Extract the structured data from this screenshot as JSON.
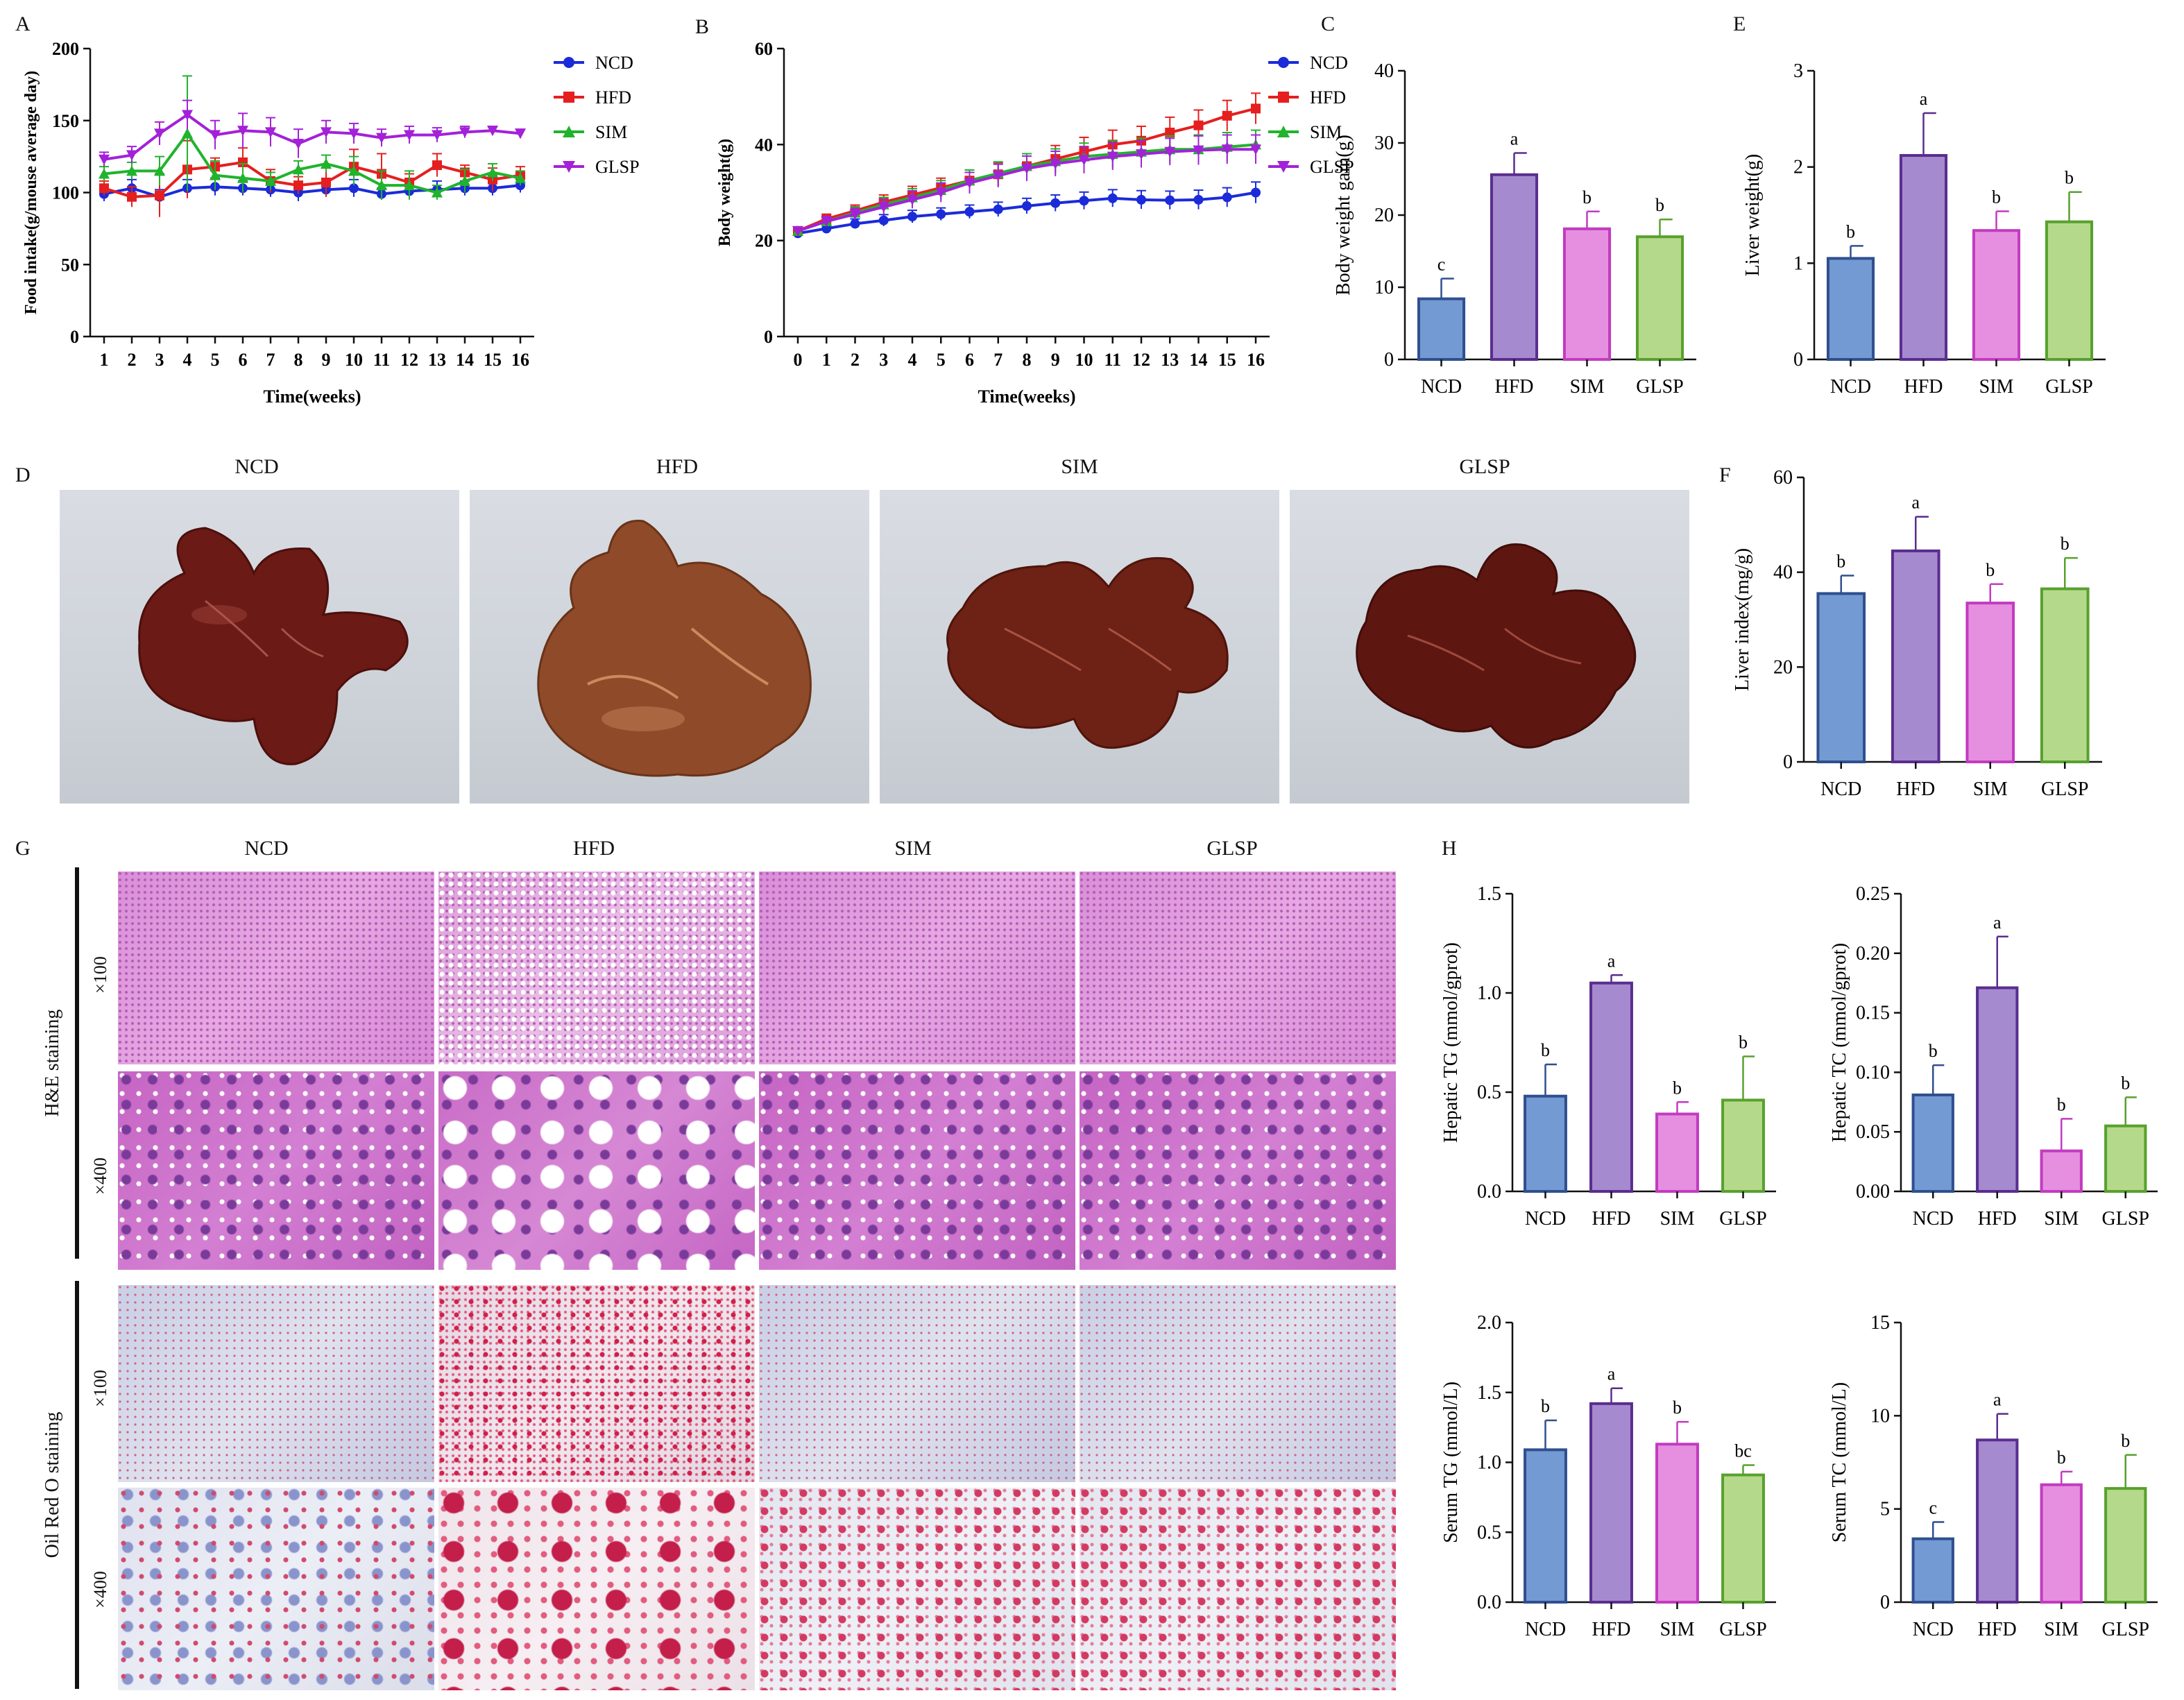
{
  "panel_letters": {
    "A": "A",
    "B": "B",
    "C": "C",
    "D": "D",
    "E": "E",
    "F": "F",
    "G": "G",
    "H": "H"
  },
  "groups": [
    "NCD",
    "HFD",
    "SIM",
    "GLSP"
  ],
  "colors": {
    "NCD": "#1b2bd9",
    "HFD": "#e51f1f",
    "SIM": "#20b32c",
    "GLSP": "#a321d8",
    "bar_NCD": "#739ad2",
    "bar_HFD": "#a58ad0",
    "bar_SIM": "#e68fe0",
    "bar_GLSP": "#b5d98a",
    "edge_NCD": "#2f4f8f",
    "edge_HFD": "#5a2d8e",
    "edge_SIM": "#c23bc0",
    "edge_GLSP": "#57a12e"
  },
  "photo_labels": {
    "liver": [
      "NCD",
      "HFD",
      "SIM",
      "GLSP"
    ],
    "histology": [
      "NCD",
      "HFD",
      "SIM",
      "GLSP"
    ]
  },
  "histology": {
    "he_label": "H&E staining",
    "or_label": "Oil Red O staining",
    "mag100": "×100",
    "mag400": "×400"
  },
  "chart_data": [
    {
      "id": "A",
      "type": "line",
      "ylabel": "Food intake(g/mouse average day)",
      "xlabel": "Time(weeks)",
      "ylim": [
        0,
        200
      ],
      "yticks": [
        0,
        50,
        100,
        150,
        200
      ],
      "x": [
        1,
        2,
        3,
        4,
        5,
        6,
        7,
        8,
        9,
        10,
        11,
        12,
        13,
        14,
        15,
        16
      ],
      "xtick_labels": [
        "1",
        "2",
        "3",
        "4",
        "5",
        "6",
        "7",
        "8",
        "9",
        "10",
        "11",
        "12",
        "13",
        "14",
        "15",
        "16"
      ],
      "series": [
        {
          "name": "NCD",
          "values": [
            99,
            103,
            97,
            103,
            104,
            103,
            102,
            100,
            102,
            103,
            99,
            101,
            102,
            103,
            103,
            105
          ],
          "err": [
            5,
            6,
            5,
            6,
            6,
            5,
            5,
            6,
            5,
            6,
            4,
            5,
            6,
            5,
            5,
            5
          ]
        },
        {
          "name": "HFD",
          "values": [
            103,
            97,
            98,
            116,
            118,
            121,
            108,
            105,
            107,
            118,
            113,
            107,
            119,
            114,
            109,
            112
          ],
          "err": [
            5,
            7,
            15,
            20,
            6,
            10,
            8,
            6,
            10,
            12,
            14,
            6,
            8,
            5,
            8,
            6
          ]
        },
        {
          "name": "SIM",
          "values": [
            113,
            115,
            115,
            141,
            112,
            110,
            108,
            116,
            120,
            115,
            105,
            105,
            100,
            108,
            114,
            110
          ],
          "err": [
            5,
            6,
            10,
            40,
            10,
            10,
            6,
            6,
            6,
            10,
            10,
            10,
            5,
            8,
            6,
            5
          ]
        },
        {
          "name": "GLSP",
          "values": [
            123,
            126,
            141,
            154,
            140,
            143,
            142,
            134,
            142,
            141,
            138,
            140,
            140,
            142,
            143,
            141
          ],
          "err": [
            5,
            6,
            8,
            10,
            10,
            12,
            10,
            10,
            8,
            7,
            6,
            6,
            5,
            4,
            3,
            3
          ]
        }
      ]
    },
    {
      "id": "B",
      "type": "line",
      "ylabel": "Body weight(g)",
      "xlabel": "Time(weeks)",
      "ylim": [
        0,
        60
      ],
      "yticks": [
        0,
        20,
        40,
        60
      ],
      "x": [
        0,
        1,
        2,
        3,
        4,
        5,
        6,
        7,
        8,
        9,
        10,
        11,
        12,
        13,
        14,
        15,
        16
      ],
      "xtick_labels": [
        "0",
        "1",
        "2",
        "3",
        "4",
        "5",
        "6",
        "7",
        "8",
        "9",
        "10",
        "11",
        "12",
        "13",
        "14",
        "15",
        "16"
      ],
      "series": [
        {
          "name": "NCD",
          "values": [
            21.5,
            22.5,
            23.5,
            24.2,
            25,
            25.5,
            26,
            26.5,
            27.2,
            27.8,
            28.3,
            28.8,
            28.5,
            28.4,
            28.5,
            29,
            30
          ],
          "err": [
            0.6,
            0.8,
            1,
            1.2,
            1.3,
            1.3,
            1.4,
            1.5,
            1.6,
            1.7,
            1.8,
            1.8,
            1.9,
            1.9,
            2,
            2,
            2.2
          ]
        },
        {
          "name": "HFD",
          "values": [
            22,
            24.5,
            26.2,
            28,
            29.5,
            31,
            32.5,
            33.8,
            35.5,
            37,
            38.5,
            40,
            40.8,
            42.5,
            44,
            46,
            47.5
          ],
          "err": [
            0.6,
            1,
            1.2,
            1.5,
            1.8,
            2,
            2.2,
            2.4,
            2.6,
            2.8,
            3,
            3,
            3,
            3.2,
            3.2,
            3.2,
            3.2
          ]
        },
        {
          "name": "SIM",
          "values": [
            22,
            24,
            25.8,
            27.5,
            29,
            30.5,
            32.5,
            34,
            35.5,
            36.5,
            37.5,
            38,
            38.5,
            39,
            39,
            39.5,
            40
          ],
          "err": [
            0.6,
            1,
            1.2,
            1.5,
            1.8,
            2,
            2.2,
            2.4,
            2.6,
            2.6,
            2.8,
            2.8,
            2.8,
            2.8,
            3,
            3,
            3
          ]
        },
        {
          "name": "GLSP",
          "values": [
            22,
            24,
            25.5,
            27,
            28.5,
            30,
            32,
            33.5,
            35,
            36,
            36.8,
            37.5,
            38,
            38.5,
            38.8,
            39,
            39
          ],
          "err": [
            0.6,
            1,
            1.2,
            1.5,
            1.8,
            2,
            2.2,
            2.4,
            2.6,
            2.6,
            2.8,
            2.8,
            2.8,
            2.8,
            3,
            3,
            3
          ]
        }
      ]
    },
    {
      "id": "C",
      "type": "bar",
      "ylabel": "Body weight gain(g)",
      "categories": [
        "NCD",
        "HFD",
        "SIM",
        "GLSP"
      ],
      "values": [
        8.4,
        25.6,
        18.1,
        17.0
      ],
      "err": [
        2.8,
        3.0,
        2.4,
        2.4
      ],
      "letters": [
        "c",
        "a",
        "b",
        "b"
      ],
      "ylim": [
        0,
        40
      ],
      "yticks": [
        0,
        10,
        20,
        30,
        40
      ],
      "ytick_labels": [
        "0",
        "10",
        "20",
        "30",
        "40"
      ]
    },
    {
      "id": "E",
      "type": "bar",
      "ylabel": "Liver weight(g)",
      "categories": [
        "NCD",
        "HFD",
        "SIM",
        "GLSP"
      ],
      "values": [
        1.05,
        2.12,
        1.34,
        1.43
      ],
      "err": [
        0.13,
        0.44,
        0.2,
        0.31
      ],
      "letters": [
        "b",
        "a",
        "b",
        "b"
      ],
      "ylim": [
        0,
        3
      ],
      "yticks": [
        0,
        1,
        2,
        3
      ],
      "ytick_labels": [
        "0",
        "1",
        "2",
        "3"
      ]
    },
    {
      "id": "F",
      "type": "bar",
      "ylabel": "Liver index(mg/g)",
      "categories": [
        "NCD",
        "HFD",
        "SIM",
        "GLSP"
      ],
      "values": [
        35.5,
        44.5,
        33.5,
        36.5
      ],
      "err": [
        3.8,
        7.2,
        4.0,
        6.5
      ],
      "letters": [
        "b",
        "a",
        "b",
        "b"
      ],
      "ylim": [
        0,
        60
      ],
      "yticks": [
        0,
        20,
        40,
        60
      ],
      "ytick_labels": [
        "0",
        "20",
        "40",
        "60"
      ]
    },
    {
      "id": "H1",
      "type": "bar",
      "ylabel": "Hepatic TG (mmol/gprot)",
      "categories": [
        "NCD",
        "HFD",
        "SIM",
        "GLSP"
      ],
      "values": [
        0.48,
        1.05,
        0.39,
        0.46
      ],
      "err": [
        0.16,
        0.04,
        0.06,
        0.22
      ],
      "letters": [
        "b",
        "a",
        "b",
        "b"
      ],
      "ylim": [
        0,
        1.5
      ],
      "yticks": [
        0,
        0.5,
        1.0,
        1.5
      ],
      "ytick_labels": [
        "0.0",
        "0.5",
        "1.0",
        "1.5"
      ]
    },
    {
      "id": "H2",
      "type": "bar",
      "ylabel": "Hepatic TC (mmol/gprot)",
      "categories": [
        "NCD",
        "HFD",
        "SIM",
        "GLSP"
      ],
      "values": [
        0.081,
        0.171,
        0.034,
        0.055
      ],
      "err": [
        0.025,
        0.043,
        0.027,
        0.024
      ],
      "letters": [
        "b",
        "a",
        "b",
        "b"
      ],
      "ylim": [
        0,
        0.25
      ],
      "yticks": [
        0,
        0.05,
        0.1,
        0.15,
        0.2,
        0.25
      ],
      "ytick_labels": [
        "0.00",
        "0.05",
        "0.10",
        "0.15",
        "0.20",
        "0.25"
      ]
    },
    {
      "id": "H3",
      "type": "bar",
      "ylabel": "Serum TG (mmol/L)",
      "categories": [
        "NCD",
        "HFD",
        "SIM",
        "GLSP"
      ],
      "values": [
        1.09,
        1.42,
        1.13,
        0.91
      ],
      "err": [
        0.21,
        0.11,
        0.16,
        0.07
      ],
      "letters": [
        "b",
        "a",
        "b",
        "bc"
      ],
      "ylim": [
        0,
        2.0
      ],
      "yticks": [
        0,
        0.5,
        1.0,
        1.5,
        2.0
      ],
      "ytick_labels": [
        "0.0",
        "0.5",
        "1.0",
        "1.5",
        "2.0"
      ]
    },
    {
      "id": "H4",
      "type": "bar",
      "ylabel": "Serum TC (mmol/L)",
      "categories": [
        "NCD",
        "HFD",
        "SIM",
        "GLSP"
      ],
      "values": [
        3.4,
        8.7,
        6.3,
        6.1
      ],
      "err": [
        0.9,
        1.4,
        0.7,
        1.8
      ],
      "letters": [
        "c",
        "a",
        "b",
        "b"
      ],
      "ylim": [
        0,
        15
      ],
      "yticks": [
        0,
        5,
        10,
        15
      ],
      "ytick_labels": [
        "0",
        "5",
        "10",
        "15"
      ]
    }
  ]
}
